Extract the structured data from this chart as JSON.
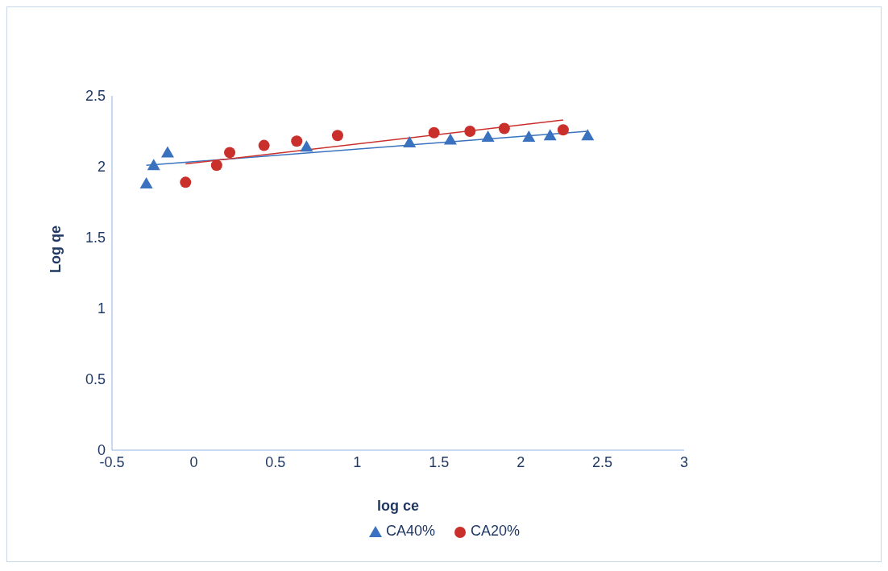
{
  "chart_data": {
    "type": "scatter",
    "xlabel": "log ce",
    "ylabel": "Log qe",
    "xlim": [
      -0.5,
      3
    ],
    "xticks": [
      -0.5,
      0,
      0.5,
      1,
      1.5,
      2,
      2.5,
      3
    ],
    "ylim": [
      0,
      2.5
    ],
    "yticks": [
      0,
      0.5,
      1,
      1.5,
      2,
      2.5
    ],
    "grid": false,
    "legend": "bottom",
    "series": [
      {
        "name": "CA40%",
        "color": "#3a72bf",
        "marker": "triangle",
        "x": [
          -0.29,
          -0.245,
          -0.16,
          0.69,
          1.32,
          1.57,
          1.8,
          2.05,
          2.18,
          2.41
        ],
        "values": [
          1.88,
          2.01,
          2.1,
          2.14,
          2.17,
          2.19,
          2.21,
          2.21,
          2.22,
          2.22
        ]
      },
      {
        "name": "CA20%",
        "color": "#c9302c",
        "marker": "circle",
        "x": [
          -0.05,
          0.14,
          0.22,
          0.43,
          0.63,
          0.88,
          1.47,
          1.69,
          1.9,
          2.26
        ],
        "values": [
          1.89,
          2.01,
          2.1,
          2.15,
          2.18,
          2.22,
          2.24,
          2.25,
          2.27,
          2.26
        ]
      },
      {
        "type": "line",
        "color": "#3a72bf",
        "marker": "none",
        "x": [
          -0.29,
          2.41
        ],
        "values": [
          2.01,
          2.25
        ]
      },
      {
        "type": "line",
        "color": "#c9302c",
        "marker": "none",
        "x": [
          -0.05,
          2.26
        ],
        "values": [
          2.02,
          2.33
        ]
      }
    ]
  }
}
